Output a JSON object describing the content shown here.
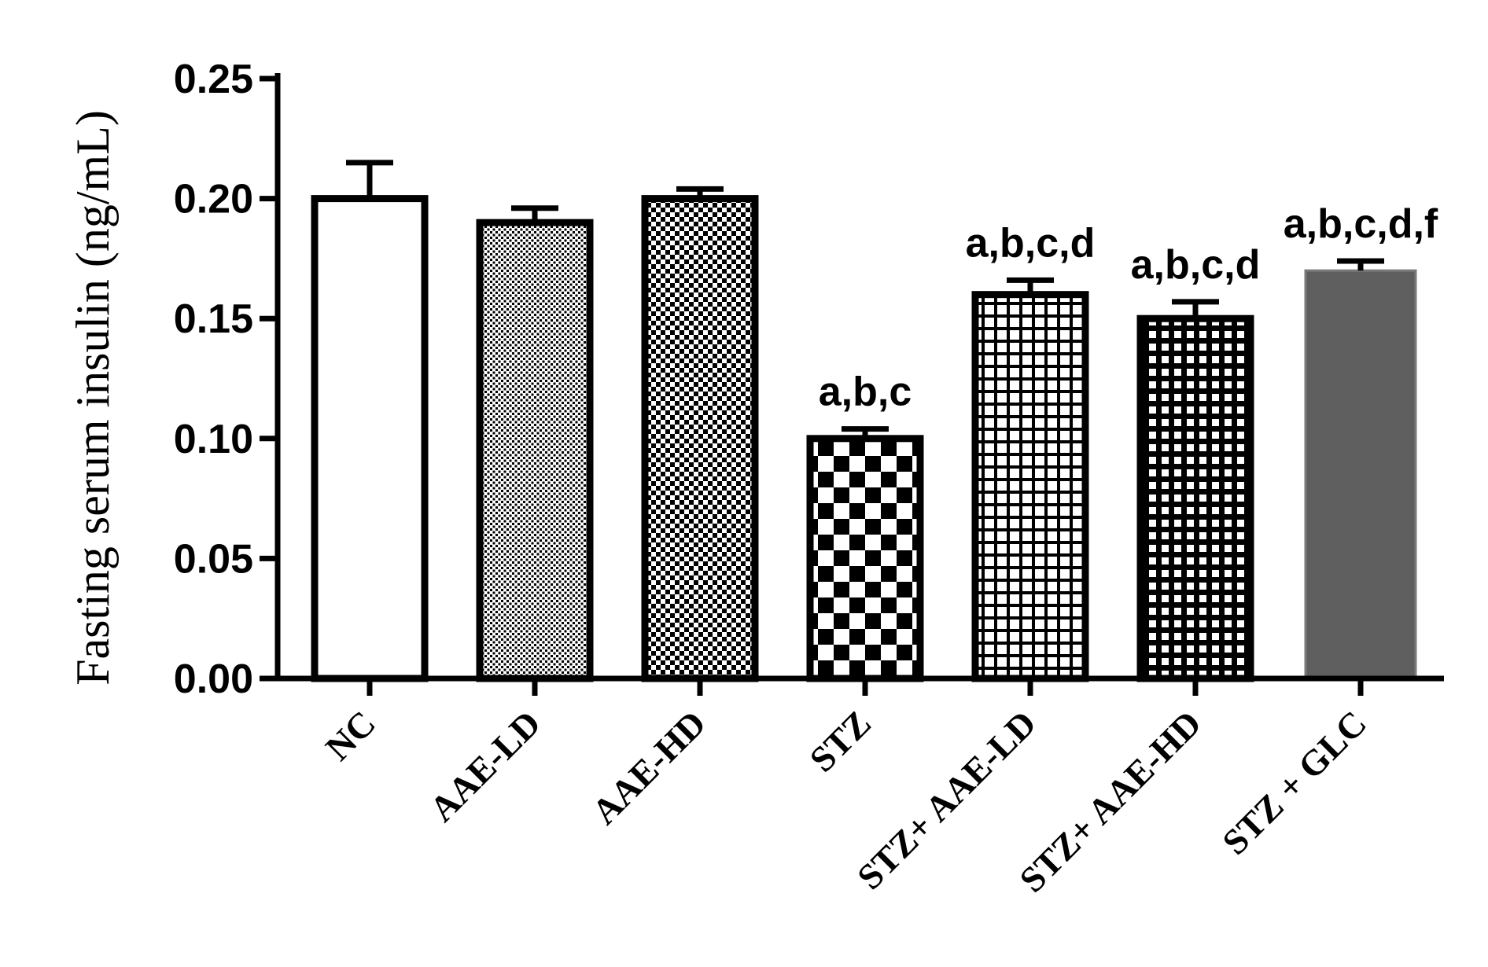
{
  "chart_data": {
    "type": "bar",
    "ylabel": "Fasting serum insulin (ng/mL)",
    "ylim": [
      0,
      0.25
    ],
    "yticks": [
      "0.00",
      "0.05",
      "0.10",
      "0.15",
      "0.20",
      "0.25"
    ],
    "categories": [
      "NC",
      "AAE-LD",
      "AAE-HD",
      "STZ",
      "STZ+ AAE-LD",
      "STZ+ AAE-HD",
      "STZ + GLC"
    ],
    "values": [
      0.2,
      0.19,
      0.2,
      0.1,
      0.16,
      0.15,
      0.17
    ],
    "errors": [
      0.015,
      0.006,
      0.004,
      0.004,
      0.006,
      0.007,
      0.004
    ],
    "significance": [
      "",
      "",
      "",
      "a,b,c",
      "a,b,c,d",
      "a,b,c,d",
      "a,b,c,d,f"
    ],
    "fills": [
      "white",
      "fine-dots",
      "fine-check",
      "large-check",
      "grid",
      "dark-grid",
      "#5f5f5f"
    ]
  }
}
